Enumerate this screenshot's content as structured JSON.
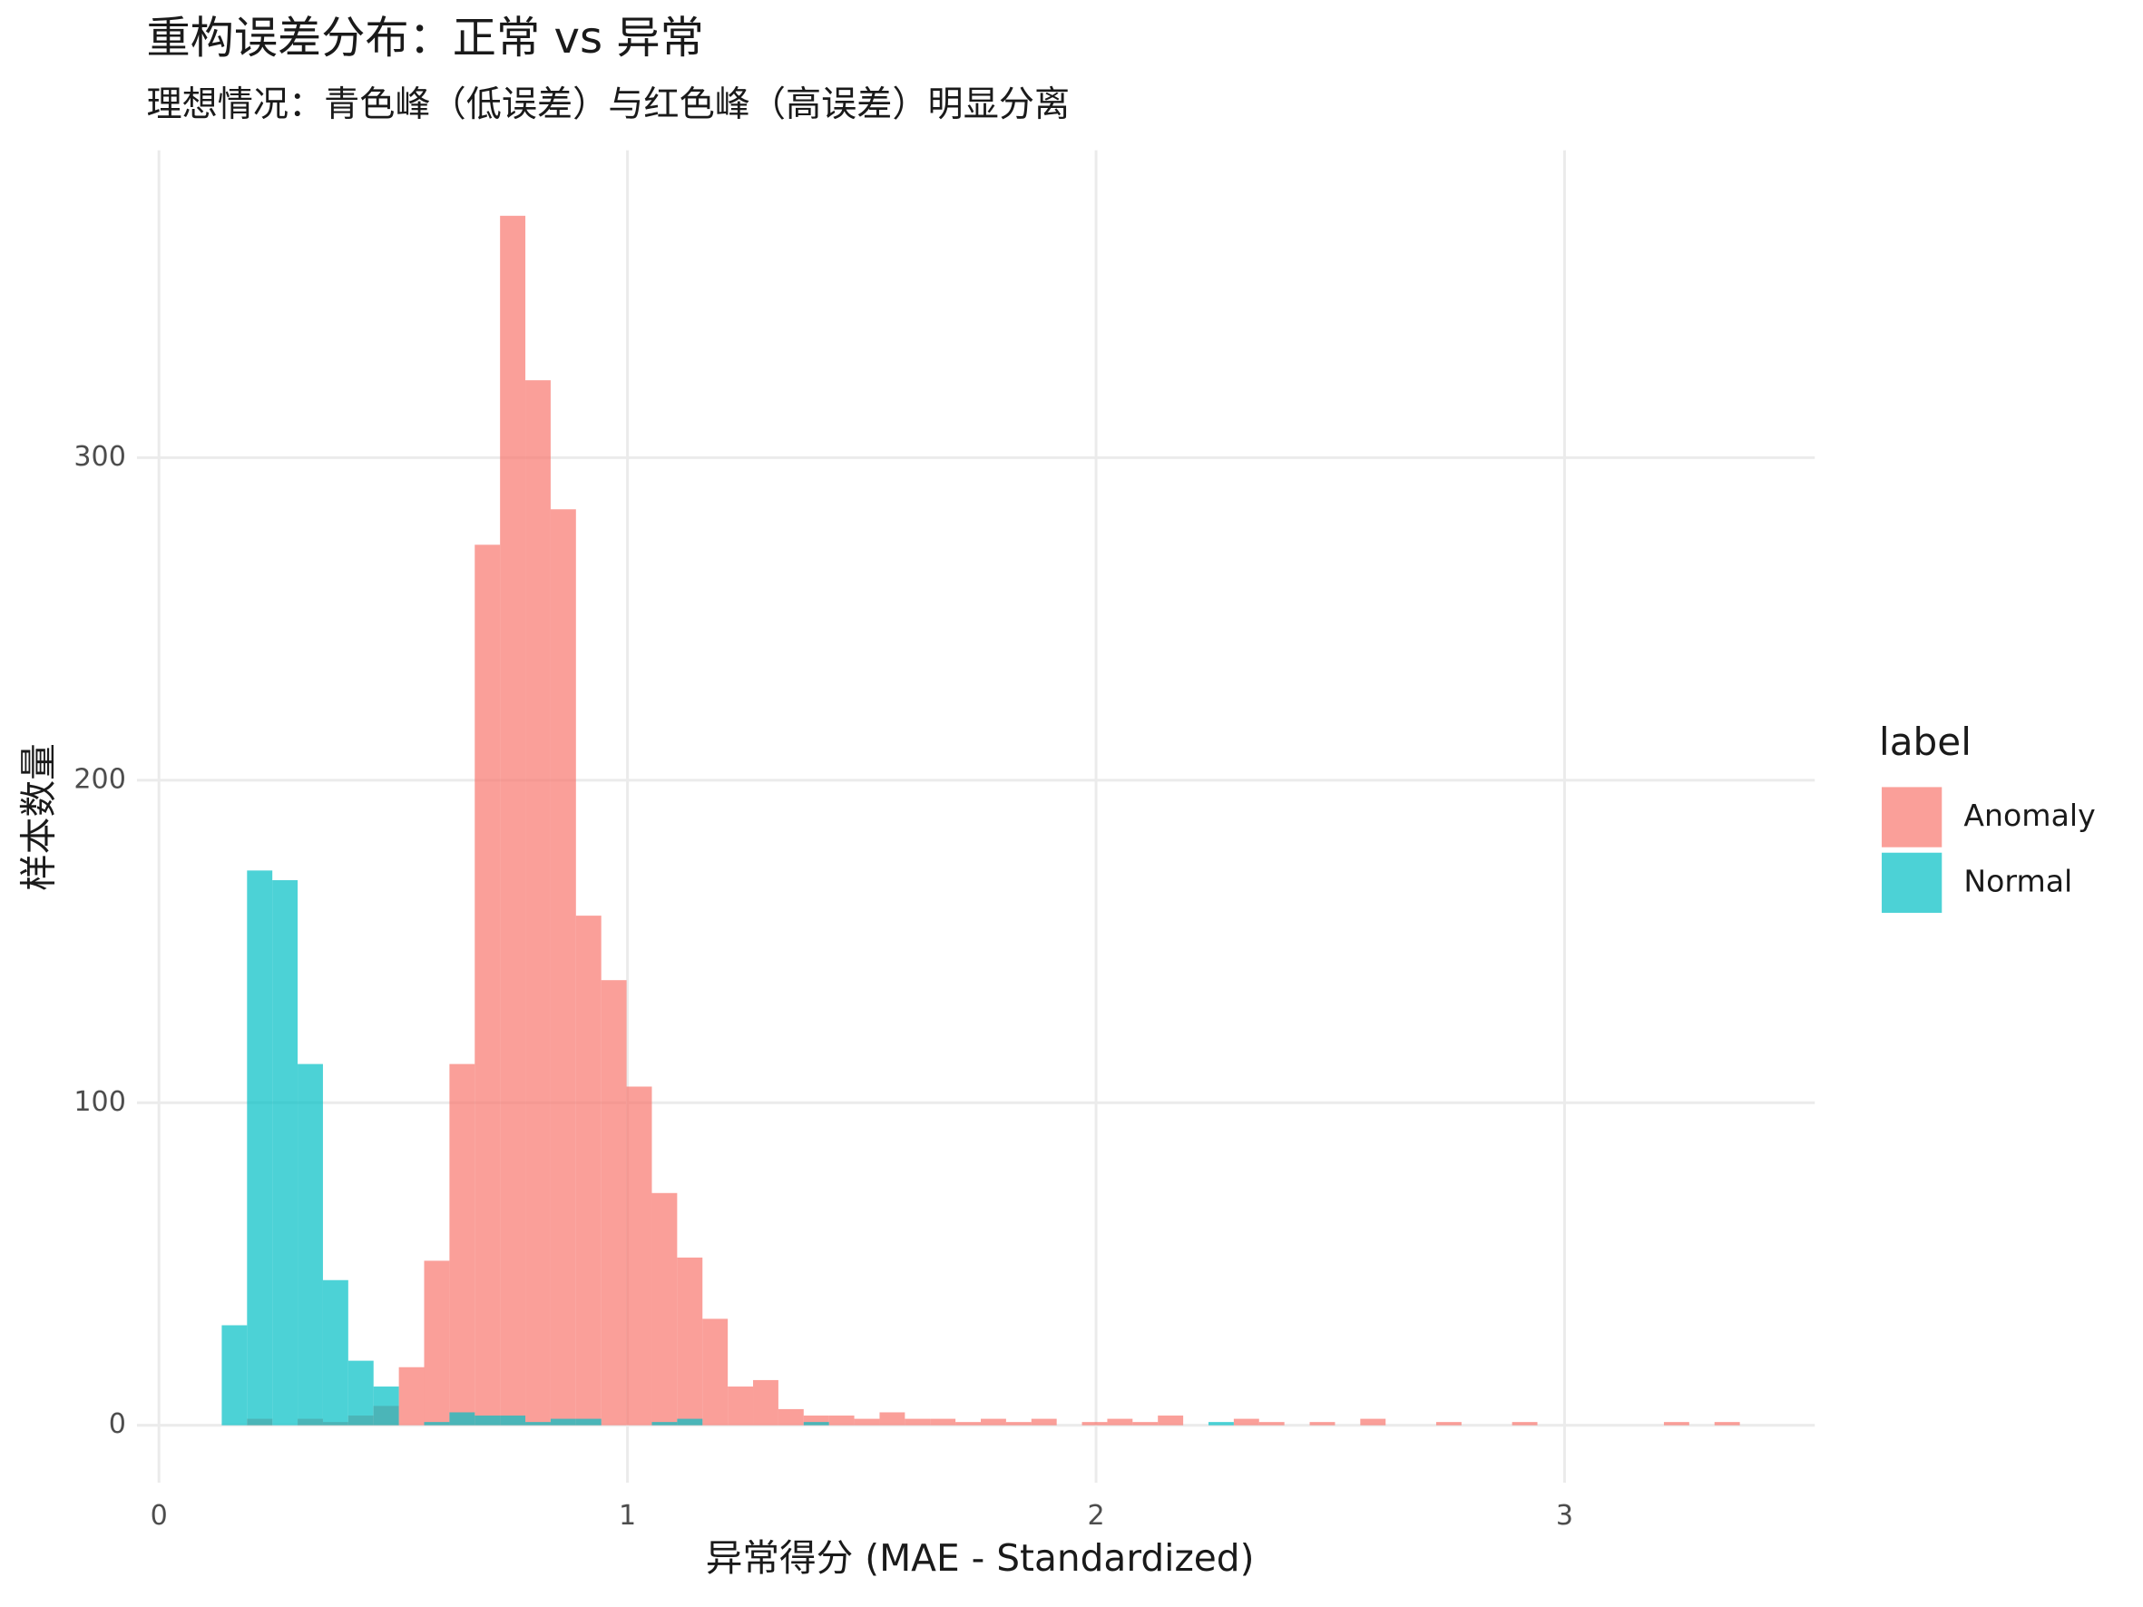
{
  "chart_data": {
    "type": "histogram",
    "title": "重构误差分布：正常 vs 异常",
    "subtitle": "理想情况：青色峰（低误差）与红色峰（高误差）明显分离",
    "x_label": "异常得分 (MAE - Standardized)",
    "y_label": "样本数量",
    "legend_title": "label",
    "legend_position": "right",
    "grid": true,
    "opacity": 0.7,
    "bins": [
      0.134,
      0.188,
      0.242,
      0.296,
      0.35,
      0.404,
      0.458,
      0.512,
      0.566,
      0.62,
      0.674,
      0.728,
      0.782,
      0.836,
      0.89,
      0.944,
      0.998,
      1.052,
      1.106,
      1.16,
      1.214,
      1.268,
      1.322,
      1.376,
      1.43,
      1.484,
      1.538,
      1.592,
      1.646,
      1.7,
      1.754,
      1.808,
      1.862,
      1.916,
      1.97,
      2.024,
      2.078,
      2.132,
      2.186,
      2.24,
      2.294,
      2.348,
      2.402,
      2.456,
      2.51,
      2.564,
      2.618,
      2.672,
      2.726,
      2.78,
      2.834,
      2.888,
      2.942,
      2.996,
      3.05,
      3.104,
      3.158,
      3.212,
      3.266,
      3.32,
      3.374
    ],
    "series": [
      {
        "name": "Anomaly",
        "color": "#F8766D",
        "values": [
          0,
          2,
          0,
          2,
          1,
          3,
          6,
          18,
          51,
          112,
          273,
          375,
          324,
          284,
          158,
          138,
          105,
          72,
          52,
          33,
          12,
          14,
          5,
          3,
          3,
          2,
          4,
          2,
          2,
          1,
          2,
          1,
          2,
          0,
          1,
          2,
          1,
          3,
          0,
          0,
          2,
          1,
          0,
          1,
          0,
          2,
          0,
          0,
          1,
          0,
          0,
          1,
          0,
          0,
          0,
          0,
          0,
          1,
          0,
          1
        ]
      },
      {
        "name": "Normal",
        "color": "#00BFC4",
        "values": [
          31,
          172,
          169,
          112,
          45,
          20,
          12,
          0,
          1,
          4,
          3,
          3,
          1,
          2,
          2,
          0,
          0,
          1,
          2,
          0,
          0,
          0,
          0,
          1,
          0,
          0,
          0,
          0,
          0,
          0,
          0,
          0,
          0,
          0,
          0,
          0,
          0,
          0,
          0,
          1,
          0,
          0,
          0,
          0,
          0,
          0,
          0,
          0,
          0,
          0,
          0,
          0,
          0,
          0,
          0,
          0,
          0,
          0,
          0,
          0
        ]
      }
    ],
    "xlim": [
      -0.047,
      3.534
    ],
    "xticks": [
      0,
      1,
      2,
      3
    ],
    "ylim": [
      -17.8,
      395.3
    ],
    "yticks": [
      0,
      100,
      200,
      300
    ]
  }
}
